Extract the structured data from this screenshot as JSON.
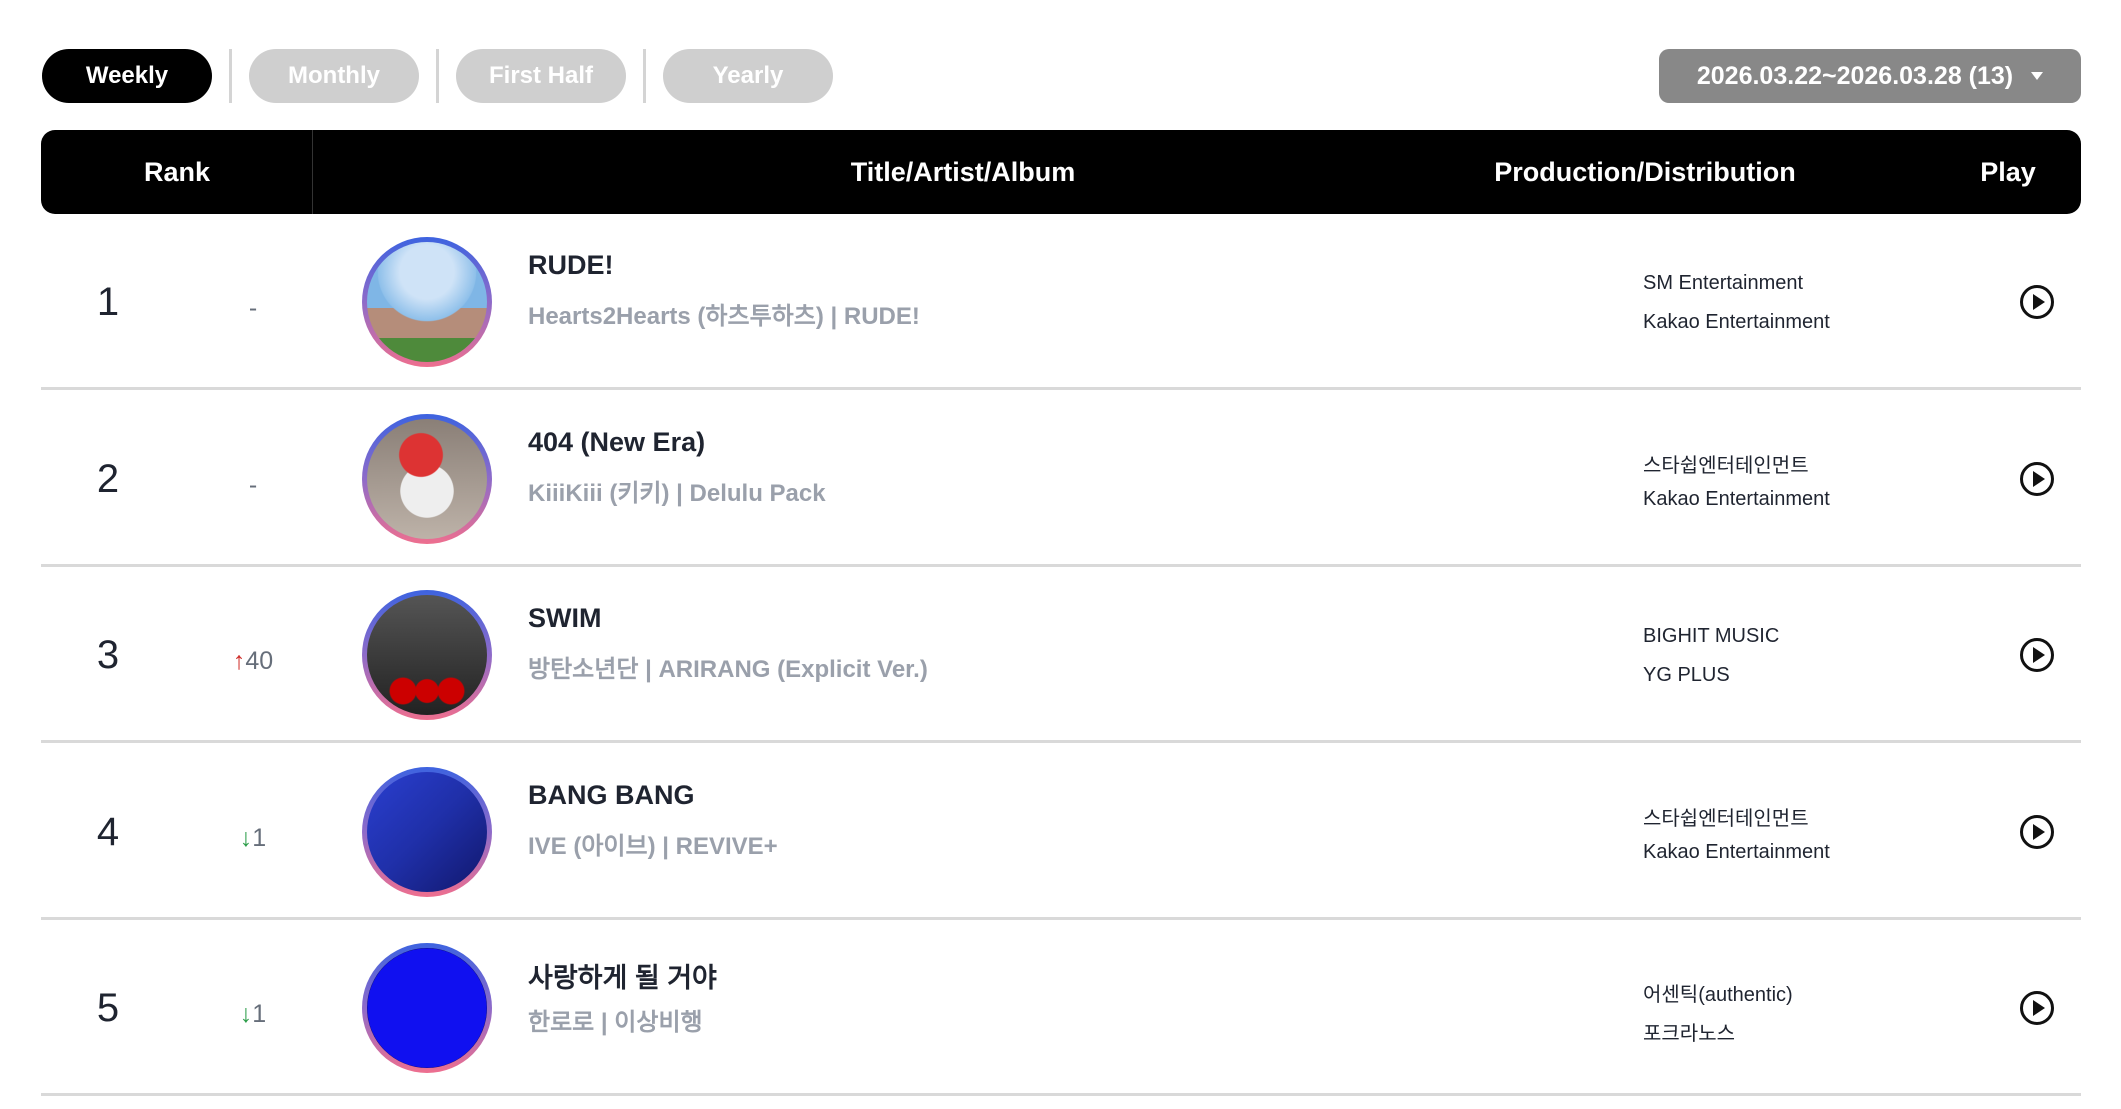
{
  "tabs": [
    {
      "label": "Weekly",
      "active": true
    },
    {
      "label": "Monthly",
      "active": false
    },
    {
      "label": "First Half",
      "active": false
    },
    {
      "label": "Yearly",
      "active": false
    }
  ],
  "date_selector": {
    "value": "2026.03.22~2026.03.28 (13)"
  },
  "table": {
    "headers": {
      "rank": "Rank",
      "title": "Title/Artist/Album",
      "production": "Production/Distribution",
      "play": "Play"
    },
    "rows": [
      {
        "rank": "1",
        "change": "-",
        "change_dir": "none",
        "title": "RUDE!",
        "subtitle": "Hearts2Hearts (하츠투하츠) | RUDE!",
        "production": "SM Entertainment",
        "distribution": "Kakao Entertainment"
      },
      {
        "rank": "2",
        "change": "-",
        "change_dir": "none",
        "title": "404 (New Era)",
        "subtitle": "KiiiKiii (키키) | Delulu Pack",
        "production": "스타쉽엔터테인먼트",
        "distribution": "Kakao Entertainment"
      },
      {
        "rank": "3",
        "change": "40",
        "change_dir": "up",
        "title": "SWIM",
        "subtitle": "방탄소년단 | ARIRANG (Explicit Ver.)",
        "production": "BIGHIT MUSIC",
        "distribution": "YG PLUS"
      },
      {
        "rank": "4",
        "change": "1",
        "change_dir": "down",
        "title": "BANG BANG",
        "subtitle": "IVE (아이브) | REVIVE+",
        "production": "스타쉽엔터테인먼트",
        "distribution": "Kakao Entertainment"
      },
      {
        "rank": "5",
        "change": "1",
        "change_dir": "down",
        "title": "사랑하게 될 거야",
        "subtitle": "한로로 | 이상비행",
        "production": "어센틱(authentic)",
        "distribution": "포크라노스"
      }
    ]
  },
  "colors": {
    "up": "#d0312d",
    "down": "#2e9e4b",
    "header_bg": "#000000",
    "inactive_tab": "#cfcfcf",
    "date_bg": "#888888"
  }
}
